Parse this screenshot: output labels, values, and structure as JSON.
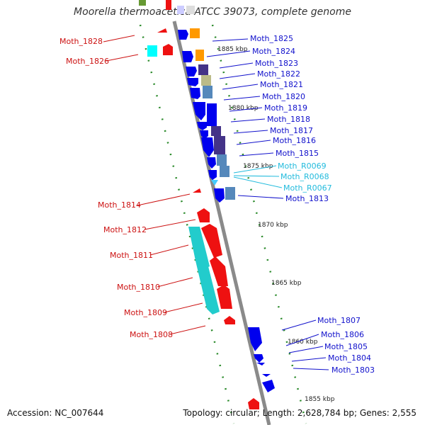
{
  "title": "Moorella thermoacetica ATCC 39073, complete genome",
  "footer": {
    "accession": "Accession: NC_007644",
    "topology": "Topology: circular; Length: 2,628,784 bp; Genes: 2,555"
  },
  "colors": {
    "backbone": "#888888",
    "forward_gene": "#0000ee",
    "reverse_gene": "#ee0000",
    "forward_label": "#1111cc",
    "reverse_label": "#cc1111",
    "rna_label": "#22bbdd",
    "tick": "#228822"
  },
  "ticks": [
    "1885 kbp",
    "1880 kbp",
    "1875 kbp",
    "1870 kbp",
    "1865 kbp",
    "1860 kbp",
    "1855 kbp"
  ],
  "forward_genes": [
    "Moth_1825",
    "Moth_1824",
    "Moth_1823",
    "Moth_1822",
    "Moth_1821",
    "Moth_1820",
    "Moth_1819",
    "Moth_1818",
    "Moth_1817",
    "Moth_1816",
    "Moth_1815",
    "Moth_R0069",
    "Moth_R0068",
    "Moth_R0067",
    "Moth_1813",
    "Moth_1807",
    "Moth_1806",
    "Moth_1805",
    "Moth_1804",
    "Moth_1803"
  ],
  "reverse_genes": [
    "Moth_1828",
    "Moth_1826",
    "Moth_1814",
    "Moth_1812",
    "Moth_1811",
    "Moth_1810",
    "Moth_1809",
    "Moth_1808"
  ]
}
